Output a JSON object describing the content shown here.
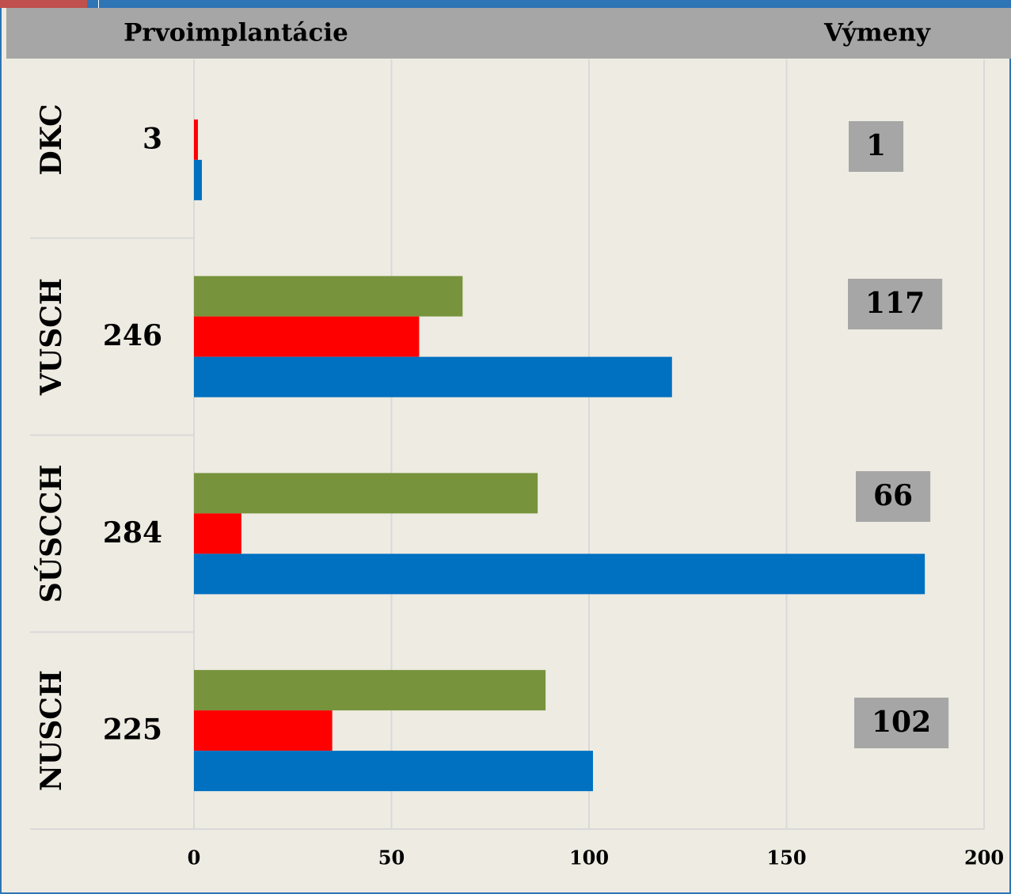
{
  "chart_data": {
    "type": "bar",
    "orientation": "horizontal",
    "title": "Prvoimplantácie",
    "right_title": "Výmeny",
    "categories": [
      "DKC",
      "VUSCH",
      "SÚSCCH",
      "NUSCH"
    ],
    "series": [
      {
        "color": "#77933c",
        "values": [
          0,
          68,
          87,
          89
        ]
      },
      {
        "color": "#ff0000",
        "values": [
          1,
          57,
          12,
          35
        ]
      },
      {
        "color": "#0070c0",
        "values": [
          2,
          121,
          185,
          101
        ]
      }
    ],
    "totals": [
      3,
      246,
      284,
      225
    ],
    "replacements": [
      1,
      117,
      66,
      102
    ],
    "xlim": [
      0,
      200
    ],
    "xticks": [
      0,
      50,
      100,
      150,
      200
    ],
    "grid": true
  }
}
